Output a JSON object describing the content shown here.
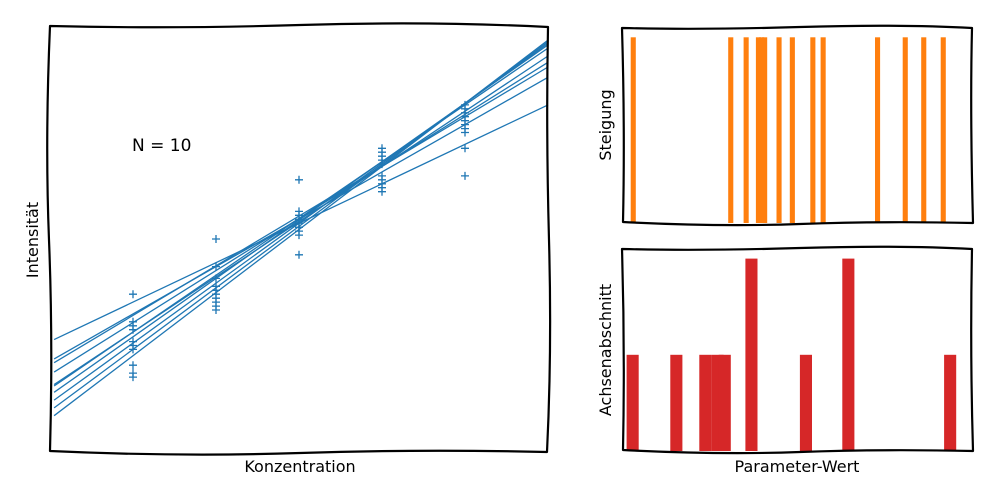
{
  "chart_data": [
    {
      "type": "scatter",
      "xlabel": "Konzentration",
      "ylabel": "Intensität",
      "annotation": "N = 10",
      "xlim": [
        0.0,
        6.0
      ],
      "ylim": [
        -0.1,
        5.3
      ],
      "color": "#1f77b4",
      "x_positions": [
        1,
        2,
        3,
        4,
        5
      ],
      "points": [
        [
          1,
          1.9
        ],
        [
          1,
          1.55
        ],
        [
          1,
          1.5
        ],
        [
          1,
          1.45
        ],
        [
          1,
          1.3
        ],
        [
          1,
          1.25
        ],
        [
          1,
          1.2
        ],
        [
          1,
          1.0
        ],
        [
          1,
          0.9
        ],
        [
          1,
          0.85
        ],
        [
          2,
          2.6
        ],
        [
          2,
          2.25
        ],
        [
          2,
          2.1
        ],
        [
          2,
          2.0
        ],
        [
          2,
          1.95
        ],
        [
          2,
          1.9
        ],
        [
          2,
          1.85
        ],
        [
          2,
          1.8
        ],
        [
          2,
          1.75
        ],
        [
          2,
          1.7
        ],
        [
          3,
          3.35
        ],
        [
          3,
          2.95
        ],
        [
          3,
          2.9
        ],
        [
          3,
          2.85
        ],
        [
          3,
          2.8
        ],
        [
          3,
          2.75
        ],
        [
          3,
          2.75
        ],
        [
          3,
          2.7
        ],
        [
          3,
          2.65
        ],
        [
          3,
          2.4
        ],
        [
          4,
          3.75
        ],
        [
          4,
          3.7
        ],
        [
          4,
          3.65
        ],
        [
          4,
          3.6
        ],
        [
          4,
          3.55
        ],
        [
          4,
          3.4
        ],
        [
          4,
          3.35
        ],
        [
          4,
          3.3
        ],
        [
          4,
          3.25
        ],
        [
          4,
          3.2
        ],
        [
          5,
          4.3
        ],
        [
          5,
          4.25
        ],
        [
          5,
          4.2
        ],
        [
          5,
          4.15
        ],
        [
          5,
          4.1
        ],
        [
          5,
          4.05
        ],
        [
          5,
          4.0
        ],
        [
          5,
          3.95
        ],
        [
          5,
          3.75
        ],
        [
          5,
          3.4
        ]
      ],
      "fit_lines": [
        {
          "intercept": 1.3,
          "slope": 0.5
        },
        {
          "intercept": 1.05,
          "slope": 0.6
        },
        {
          "intercept": 1.0,
          "slope": 0.63
        },
        {
          "intercept": 0.88,
          "slope": 0.66
        },
        {
          "intercept": 0.72,
          "slope": 0.7
        },
        {
          "intercept": 0.7,
          "slope": 0.72
        },
        {
          "intercept": 0.62,
          "slope": 0.74
        },
        {
          "intercept": 0.52,
          "slope": 0.76
        },
        {
          "intercept": 0.42,
          "slope": 0.78
        },
        {
          "intercept": 0.32,
          "slope": 0.8
        }
      ]
    },
    {
      "type": "bar",
      "ylabel": "Steigung",
      "color": "#ff7f0e",
      "xlim": [
        0.48,
        0.82
      ],
      "ylim": [
        0,
        1.05
      ],
      "bar_width": 0.005,
      "x": [
        0.49,
        0.585,
        0.6,
        0.612,
        0.615,
        0.618,
        0.632,
        0.645,
        0.665,
        0.675,
        0.728,
        0.755,
        0.773,
        0.792
      ],
      "values": [
        1,
        1,
        1,
        1,
        1,
        1,
        1,
        1,
        1,
        1,
        1,
        1,
        1,
        1
      ]
    },
    {
      "type": "bar",
      "ylabel": "Achsenabschnitt",
      "xlabel": "Parameter-Wert",
      "color": "#d62728",
      "xlim": [
        0.08,
        1.52
      ],
      "ylim": [
        0,
        2.1
      ],
      "bar_width": 0.05,
      "x": [
        0.12,
        0.3,
        0.42,
        0.47,
        0.5,
        0.61,
        0.835,
        1.01,
        1.43
      ],
      "values": [
        1,
        1,
        1,
        1,
        1,
        2,
        1,
        2,
        1
      ]
    }
  ]
}
